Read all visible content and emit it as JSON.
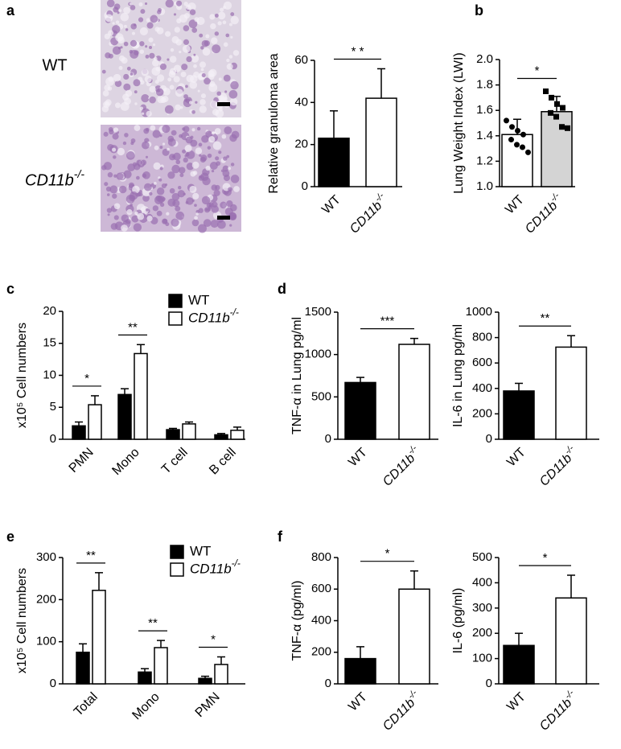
{
  "images": {
    "labels": [
      "WT",
      "CD11b-/-"
    ]
  },
  "chart_data": [
    {
      "type": "bar",
      "panel": "a",
      "ylabel": "Relative granuloma area",
      "categories": [
        "WT",
        "CD11b-/-"
      ],
      "values": [
        23,
        42
      ],
      "errors": [
        13,
        14
      ],
      "colors": [
        "#000000",
        "#ffffff"
      ],
      "ylim": [
        0,
        60
      ],
      "yticks": [
        0,
        20,
        40,
        60
      ],
      "significance": "* *"
    },
    {
      "type": "bar",
      "panel": "b",
      "ylabel": "Lung Weight Index (LWI)",
      "categories": [
        "WT",
        "CD11b-/-"
      ],
      "values": [
        1.41,
        1.59
      ],
      "errors": [
        0.12,
        0.12
      ],
      "colors": [
        "#ffffff",
        "#d4d4d4"
      ],
      "points": [
        [
          1.52,
          1.47,
          1.44,
          1.41,
          1.37,
          1.33,
          1.31,
          1.27
        ],
        [
          1.75,
          1.7,
          1.65,
          1.62,
          1.58,
          1.55,
          1.47,
          1.46
        ]
      ],
      "ylim": [
        1.0,
        2.0
      ],
      "yticks": [
        {
          "value": 1.0,
          "label": "1.0"
        },
        1.2,
        1.4,
        1.6,
        1.8,
        {
          "value": 2.0,
          "label": "2.0"
        }
      ],
      "significance": "*"
    },
    {
      "type": "grouped-bar",
      "panel": "c",
      "ylabel": "x10⁵ Cell numbers",
      "categories": [
        "PMN",
        "Mono",
        "T cell",
        "B cell"
      ],
      "series": [
        {
          "name": "WT",
          "color": "#000000",
          "values": [
            2.1,
            7.0,
            1.5,
            0.7
          ],
          "errors": [
            0.6,
            0.9,
            0.2,
            0.2
          ]
        },
        {
          "name": "CD11b-/-",
          "color": "#ffffff",
          "values": [
            5.4,
            13.4,
            2.4,
            1.4
          ],
          "errors": [
            1.4,
            1.4,
            0.3,
            0.5
          ]
        }
      ],
      "ylim": [
        0,
        20
      ],
      "yticks": [
        0,
        5,
        10,
        15,
        20
      ],
      "significance": [
        "*",
        "**",
        null,
        null
      ]
    },
    {
      "type": "bar",
      "panel": "d",
      "ylabel": "TNF-α in Lung pg/ml",
      "categories": [
        "WT",
        "CD11b-/-"
      ],
      "values": [
        670,
        1120
      ],
      "errors": [
        60,
        70
      ],
      "colors": [
        "#000000",
        "#ffffff"
      ],
      "ylim": [
        0,
        1500
      ],
      "yticks": [
        0,
        500,
        1000,
        1500
      ],
      "significance": "***"
    },
    {
      "type": "bar",
      "ylabel": "IL-6 in Lung pg/ml",
      "categories": [
        "WT",
        "CD11b-/-"
      ],
      "values": [
        380,
        725
      ],
      "errors": [
        60,
        90
      ],
      "colors": [
        "#000000",
        "#ffffff"
      ],
      "ylim": [
        0,
        1000
      ],
      "yticks": [
        0,
        200,
        400,
        600,
        800,
        1000
      ],
      "significance": "**"
    },
    {
      "type": "grouped-bar",
      "panel": "e",
      "ylabel": "x10⁵ Cell numbers",
      "categories": [
        "Total",
        "Mono",
        "PMN"
      ],
      "series": [
        {
          "name": "WT",
          "color": "#000000",
          "values": [
            75,
            28,
            13
          ],
          "errors": [
            20,
            8,
            5
          ]
        },
        {
          "name": "CD11b-/-",
          "color": "#ffffff",
          "values": [
            222,
            86,
            46
          ],
          "errors": [
            42,
            17,
            18
          ]
        }
      ],
      "ylim": [
        0,
        300
      ],
      "yticks": [
        0,
        100,
        200,
        300
      ],
      "significance": [
        "**",
        "**",
        "*"
      ]
    },
    {
      "type": "bar",
      "panel": "f",
      "ylabel": "TNF-α (pg/ml)",
      "categories": [
        "WT",
        "CD11b-/-"
      ],
      "values": [
        160,
        600
      ],
      "errors": [
        75,
        115
      ],
      "colors": [
        "#000000",
        "#ffffff"
      ],
      "ylim": [
        0,
        800
      ],
      "yticks": [
        0,
        200,
        400,
        600,
        800
      ],
      "significance": "*"
    },
    {
      "type": "bar",
      "ylabel": "IL-6 (pg/ml)",
      "categories": [
        "WT",
        "CD11b-/-"
      ],
      "values": [
        152,
        340
      ],
      "errors": [
        48,
        90
      ],
      "colors": [
        "#000000",
        "#ffffff"
      ],
      "ylim": [
        0,
        500
      ],
      "yticks": [
        0,
        100,
        200,
        300,
        400,
        500
      ],
      "significance": "*"
    }
  ]
}
